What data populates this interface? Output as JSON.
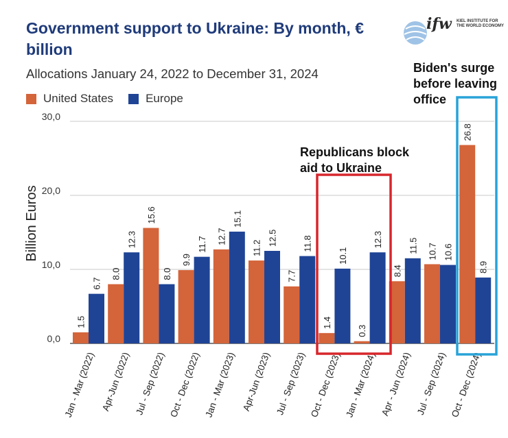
{
  "header": {
    "title": "Government support to Ukraine: By month, € billion",
    "subtitle": "Allocations January 24, 2022 to December 31, 2024"
  },
  "logo": {
    "wordmark": "ifw",
    "subtitle": "KIEL INSTITUTE FOR THE WORLD ECONOMY"
  },
  "annotations": {
    "republicans": "Republicans block aid to Ukraine",
    "biden": "Biden's surge before leaving office"
  },
  "colors": {
    "us": "#d4643a",
    "europe": "#1f4496",
    "red_box": "#d7262c",
    "blue_box": "#29a3d8"
  },
  "chart_data": {
    "type": "bar",
    "title": "Government support to Ukraine: By month, € billion",
    "ylabel": "Billion Euros",
    "xlabel": "",
    "ylim": [
      0,
      30
    ],
    "yticks": [
      "0,0",
      "10,0",
      "20,0",
      "30,0"
    ],
    "legend_position": "top-left",
    "categories": [
      "Jan - Mar (2022)",
      "Apr-Jun (2022)",
      "Jul - Sep (2022)",
      "Oct - Dec (2022)",
      "Jan - Mar (2023)",
      "Apr-Jun (2023)",
      "Jul - Sep (2023)",
      "Oct - Dec (2023)",
      "Jan - Mar (2024)",
      "Apr - Jun (2024)",
      "Jul - Sep (2024)",
      "Oct - Dec (2024)"
    ],
    "series": [
      {
        "name": "United States",
        "values": [
          1.5,
          8.0,
          15.6,
          9.9,
          12.7,
          11.2,
          7.7,
          1.4,
          0.3,
          8.4,
          10.7,
          26.8
        ],
        "labels": [
          "1.5",
          "8.0",
          "15.6",
          "9.9",
          "12.7",
          "11.2",
          "7.7",
          "1.4",
          "0.3",
          "8.4",
          "10.7",
          "26.8"
        ]
      },
      {
        "name": "Europe",
        "values": [
          6.7,
          12.3,
          8.0,
          11.7,
          15.1,
          12.5,
          11.8,
          10.1,
          12.3,
          11.5,
          10.6,
          8.9
        ],
        "labels": [
          "6.7",
          "12.3",
          "8.0",
          "11.7",
          "15.1",
          "12.5",
          "11.8",
          "10.1",
          "12.3",
          "11.5",
          "10.6",
          "8.9"
        ]
      }
    ]
  }
}
